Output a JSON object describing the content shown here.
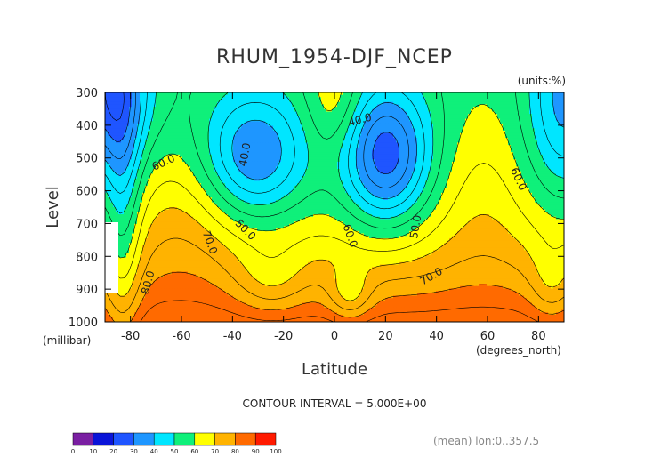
{
  "chart_data": {
    "type": "heatmap",
    "title": "RHUM_1954-DJF_NCEP",
    "units_label": "(units:%)",
    "xlabel": "Latitude",
    "ylabel": "Level",
    "x_unit_label": "(degrees_north)",
    "y_unit_label": "(millibar)",
    "xlim": [
      -90,
      90
    ],
    "ylim": [
      1000,
      300
    ],
    "x_ticks": [
      -80,
      -60,
      -40,
      -20,
      0,
      20,
      40,
      60,
      80
    ],
    "y_ticks": [
      300,
      400,
      500,
      600,
      700,
      800,
      900,
      1000
    ],
    "contour_interval_text": "CONTOUR INTERVAL = 5.000E+00",
    "footer_note": "(mean) lon:0..357.5",
    "colorbar": {
      "levels": [
        0,
        10,
        20,
        30,
        40,
        50,
        60,
        70,
        80,
        90,
        100
      ],
      "colors": [
        "#7a1fa2",
        "#0a14d8",
        "#1f55ff",
        "#1e96ff",
        "#00e6ff",
        "#0ff07a",
        "#ffff00",
        "#ffb300",
        "#ff6a00",
        "#ff1a00"
      ]
    },
    "contour_labels": [
      {
        "text": "40.0",
        "x": -35,
        "y": 490,
        "angle": -80
      },
      {
        "text": "40.0",
        "x": 10,
        "y": 385,
        "angle": -15
      },
      {
        "text": "60.0",
        "x": -67,
        "y": 515,
        "angle": -25
      },
      {
        "text": "60.0",
        "x": 72,
        "y": 565,
        "angle": 65
      },
      {
        "text": "50.0",
        "x": -35,
        "y": 720,
        "angle": 45
      },
      {
        "text": "50.0",
        "x": 32,
        "y": 710,
        "angle": -80
      },
      {
        "text": "60.0",
        "x": 6,
        "y": 738,
        "angle": 70
      },
      {
        "text": "70.0",
        "x": -49,
        "y": 758,
        "angle": 70
      },
      {
        "text": "80.0",
        "x": -73,
        "y": 880,
        "angle": -75
      },
      {
        "text": "70.0",
        "x": 38,
        "y": 862,
        "angle": -30
      }
    ],
    "grid": false,
    "legend": "bottom-left colorbar"
  }
}
